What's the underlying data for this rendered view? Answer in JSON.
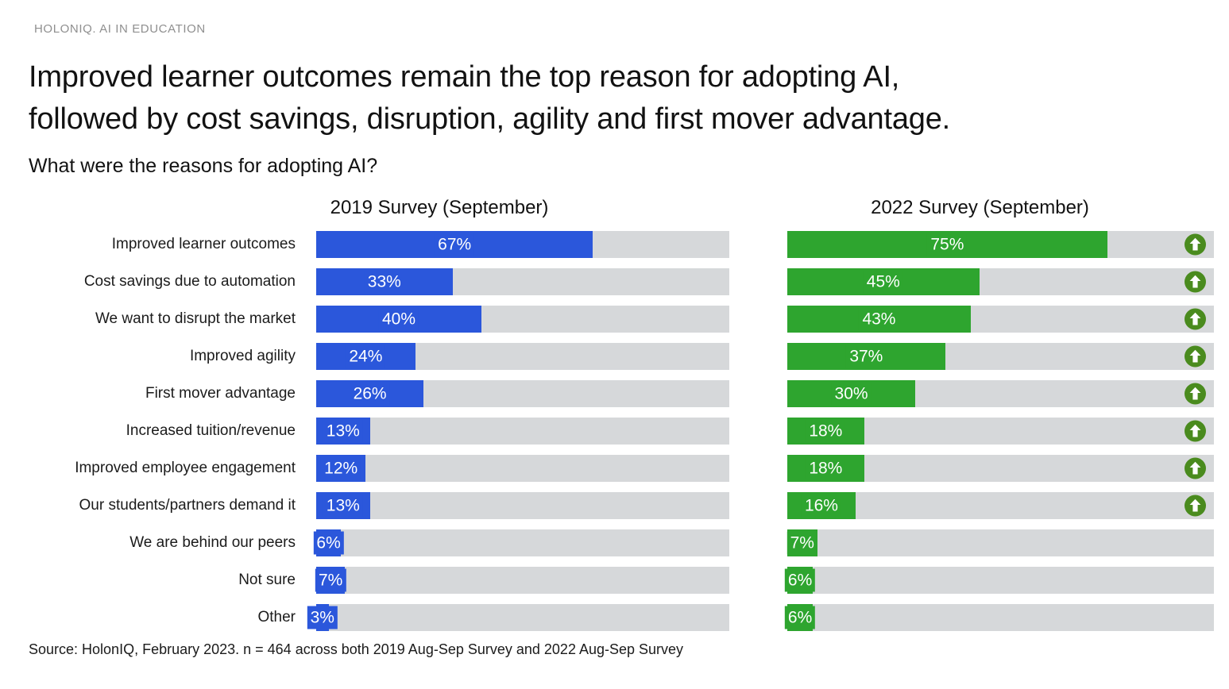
{
  "header": {
    "brand": "HOLONIQ. AI IN EDUCATION"
  },
  "title_lines": [
    "Improved learner outcomes remain the top reason for adopting AI,",
    "followed by cost savings, disruption, agility and first mover advantage."
  ],
  "subtitle": "What were the reasons for adopting AI?",
  "chart_data": {
    "type": "bar",
    "orientation": "horizontal",
    "xlim": [
      0,
      100
    ],
    "unit": "%",
    "track_color": "#d6d8da",
    "categories": [
      "Improved learner outcomes",
      "Cost savings due to automation",
      "We want to disrupt the market",
      "Improved agility",
      "First mover advantage",
      "Increased tuition/revenue",
      "Improved employee engagement",
      "Our students/partners demand it",
      "We are behind our peers",
      "Not sure",
      "Other"
    ],
    "series": [
      {
        "key": "2019",
        "name": "2019 Survey (September)",
        "color": "#2b57db",
        "values": [
          67,
          33,
          40,
          24,
          26,
          13,
          12,
          13,
          6,
          7,
          3
        ]
      },
      {
        "key": "2022",
        "name": "2022 Survey (September)",
        "color": "#2ea52f",
        "values": [
          75,
          45,
          43,
          37,
          30,
          18,
          18,
          16,
          7,
          6,
          6
        ]
      }
    ],
    "increase_arrow_rows": [
      true,
      true,
      true,
      true,
      true,
      true,
      true,
      true,
      false,
      false,
      false
    ],
    "increase_arrow_icon": {
      "name": "up-arrow-in-circle",
      "circle_color": "#4a8b1e",
      "glyph_color": "#ffffff"
    }
  },
  "source": "Source: HolonIQ, February 2023. n = 464 across both 2019 Aug-Sep Survey and 2022 Aug-Sep Survey"
}
